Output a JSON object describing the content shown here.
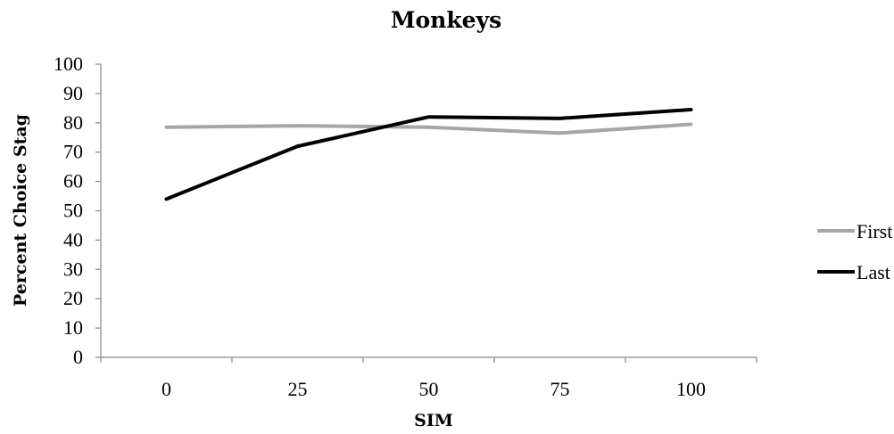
{
  "chart_data": {
    "type": "line",
    "title": "Monkeys",
    "xlabel": "SIM",
    "ylabel": "Percent Choice Stag",
    "categories": [
      "0",
      "25",
      "50",
      "75",
      "100"
    ],
    "ylim": [
      0,
      100
    ],
    "yticks": [
      "0",
      "10",
      "20",
      "30",
      "40",
      "50",
      "60",
      "70",
      "80",
      "90",
      "100"
    ],
    "grid": false,
    "legend_position": "right",
    "series": [
      {
        "name": "First",
        "color": "#a6a6a6",
        "values": [
          78.5,
          79,
          78.5,
          76.5,
          79.5
        ]
      },
      {
        "name": "Last",
        "color": "#000000",
        "values": [
          54,
          72,
          82,
          81.5,
          84.5
        ]
      }
    ]
  }
}
